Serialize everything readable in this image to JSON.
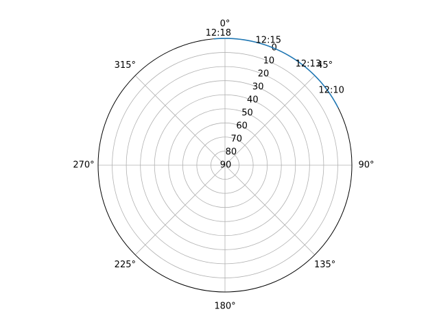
{
  "chart_data": {
    "type": "line",
    "projection": "polar",
    "theta_zero_location": "N",
    "theta_direction": "clockwise",
    "theta_tick_labels": [
      "0°",
      "45°",
      "90°",
      "135°",
      "180°",
      "225°",
      "270°",
      "315°"
    ],
    "theta_tick_degrees": [
      0,
      45,
      90,
      135,
      180,
      225,
      270,
      315
    ],
    "radial_axis_inverted": true,
    "radial_range": [
      90,
      0
    ],
    "radial_ticks": [
      0,
      10,
      20,
      30,
      40,
      50,
      60,
      70,
      80,
      90
    ],
    "radial_tick_labels": [
      "0",
      "10",
      "20",
      "30",
      "40",
      "50",
      "60",
      "70",
      "80",
      "90"
    ],
    "grid": true,
    "series": [
      {
        "color": "#1f77b4",
        "points": [
          {
            "azimuth_deg": 63,
            "value": 0
          },
          {
            "azimuth_deg": 55,
            "value": 0
          },
          {
            "azimuth_deg": 45,
            "value": 0
          },
          {
            "azimuth_deg": 35,
            "value": 0
          },
          {
            "azimuth_deg": 25,
            "value": 0
          },
          {
            "azimuth_deg": 15,
            "value": 0
          },
          {
            "azimuth_deg": 5,
            "value": 0
          },
          {
            "azimuth_deg": -5,
            "value": 0
          }
        ]
      }
    ],
    "annotations": [
      {
        "text": "12:10",
        "azimuth_deg": 57,
        "value": 0
      },
      {
        "text": "12:13",
        "azimuth_deg": 41,
        "value": 0
      },
      {
        "text": "12:15",
        "azimuth_deg": 20,
        "value": 0
      },
      {
        "text": "12:18",
        "azimuth_deg": -3,
        "value": 0
      }
    ]
  }
}
